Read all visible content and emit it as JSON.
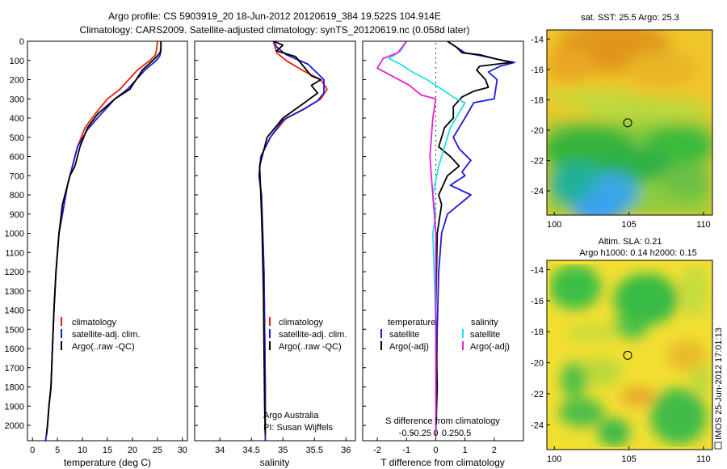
{
  "header": {
    "line1": "Argo profile: CS 5903919_20 18-Jun-2012 20120619_384 19.522S 104.914E",
    "line2": "Climatology: CARS2009. Satellite-adjusted climatology: synTS_20120619.nc (0.058d later)"
  },
  "colors": {
    "climatology": "#e8200e",
    "satellite": "#1a1adc",
    "argo": "#000000",
    "sat_s_diff": "#22dfe6",
    "argo_s_diff": "#e622d2"
  },
  "chart_data": [
    {
      "id": "temperature",
      "type": "line",
      "xlabel": "temperature (deg C)",
      "ylabel": "",
      "xlim": [
        -1,
        31
      ],
      "ylim": [
        2080,
        0
      ],
      "xticks": [
        0,
        5,
        10,
        15,
        20,
        25,
        30
      ],
      "xtick_labels": [
        "0",
        "5",
        "10",
        "15",
        "20",
        "25",
        "30"
      ],
      "yticks": [
        0,
        100,
        200,
        300,
        400,
        500,
        600,
        700,
        800,
        900,
        1000,
        1100,
        1200,
        1300,
        1400,
        1500,
        1600,
        1700,
        1800,
        1900,
        2000
      ],
      "ytick_labels": [
        "0",
        "100",
        "200",
        "300",
        "400",
        "500",
        "600",
        "700",
        "800",
        "900",
        "1000",
        "1100",
        "1200",
        "1300",
        "1400",
        "1500",
        "1600",
        "1700",
        "1800",
        "1900",
        "2000"
      ],
      "legend": [
        "climatology",
        "satellite-adj. clim.",
        "Argo(..raw -QC)"
      ],
      "series": [
        {
          "name": "climatology",
          "color_key": "climatology",
          "x": [
            25.0,
            24.8,
            24.5,
            23.5,
            21.0,
            17.5,
            15.0,
            12.5,
            10.5,
            9.0,
            8.0,
            7.0,
            6.0,
            5.3,
            4.7,
            4.3,
            4.0,
            3.7,
            3.3,
            3.0,
            2.8,
            2.6,
            2.5
          ],
          "y": [
            0,
            50,
            75,
            100,
            150,
            250,
            300,
            380,
            450,
            550,
            650,
            750,
            900,
            1000,
            1200,
            1400,
            1600,
            1800,
            1900,
            2000,
            2050,
            2080,
            2080
          ]
        },
        {
          "name": "satellite-adj. clim.",
          "color_key": "satellite",
          "x": [
            25.7,
            25.7,
            25.5,
            24.8,
            22.5,
            19.0,
            16.5,
            13.0,
            11.0,
            9.0,
            8.0,
            7.0,
            6.0,
            5.3,
            4.7,
            4.3,
            4.0,
            3.7,
            3.3,
            3.0,
            2.8,
            2.6,
            2.5
          ],
          "y": [
            0,
            50,
            75,
            100,
            150,
            250,
            300,
            400,
            460,
            550,
            650,
            750,
            900,
            1000,
            1200,
            1400,
            1600,
            1800,
            1900,
            2000,
            2050,
            2080,
            2080
          ]
        },
        {
          "name": "Argo(..raw -QC)",
          "color_key": "argo",
          "x": [
            25.7,
            25.7,
            25.5,
            24.5,
            22.0,
            19.5,
            16.5,
            13.0,
            11.0,
            9.5,
            8.5,
            7.5,
            6.0,
            5.3,
            4.7,
            4.3,
            4.0,
            3.7,
            3.3,
            3.0,
            2.8
          ],
          "y": [
            0,
            40,
            60,
            90,
            150,
            250,
            300,
            380,
            450,
            550,
            650,
            700,
            850,
            1000,
            1200,
            1400,
            1600,
            1800,
            1900,
            2000,
            2050
          ]
        }
      ]
    },
    {
      "id": "salinity",
      "type": "line",
      "xlabel": "salinity",
      "ylabel": "",
      "xlim": [
        33.6,
        36.15
      ],
      "ylim": [
        2080,
        0
      ],
      "xticks": [
        34,
        34.5,
        35,
        35.5,
        36
      ],
      "xtick_labels": [
        "34",
        "34.5",
        "35",
        "35.5",
        "36"
      ],
      "legend": [
        "climatology",
        "satellite-adj. clim.",
        "Argo(..raw -QC)"
      ],
      "annotation": [
        "Argo Australia",
        "PI: Susan Wijffels"
      ],
      "series": [
        {
          "name": "climatology",
          "color_key": "climatology",
          "x": [
            34.85,
            34.9,
            35.05,
            35.3,
            35.6,
            35.7,
            35.6,
            35.35,
            35.05,
            34.8,
            34.65,
            34.62,
            34.66,
            34.68,
            34.7,
            34.71,
            34.72,
            34.72,
            34.72
          ],
          "y": [
            0,
            60,
            100,
            150,
            200,
            250,
            300,
            350,
            400,
            500,
            600,
            700,
            800,
            1000,
            1200,
            1500,
            1800,
            2000,
            2080
          ]
        },
        {
          "name": "satellite-adj. clim.",
          "color_key": "satellite",
          "x": [
            34.85,
            34.9,
            35.05,
            35.4,
            35.65,
            35.65,
            35.55,
            35.3,
            35.0,
            34.8,
            34.65,
            34.62,
            34.66,
            34.68,
            34.7,
            34.71,
            34.72,
            34.72,
            34.72
          ],
          "y": [
            0,
            30,
            70,
            120,
            200,
            270,
            310,
            360,
            410,
            500,
            600,
            700,
            800,
            1000,
            1200,
            1500,
            1800,
            2000,
            2080
          ]
        },
        {
          "name": "Argo(..raw -QC)",
          "color_key": "argo",
          "x": [
            34.85,
            35.0,
            34.9,
            35.2,
            35.3,
            35.45,
            35.6,
            35.45,
            35.55,
            35.3,
            35.0,
            34.75,
            34.63,
            34.65,
            34.67,
            34.69,
            34.7,
            34.71,
            34.72
          ],
          "y": [
            0,
            20,
            50,
            80,
            120,
            180,
            200,
            230,
            270,
            330,
            400,
            500,
            650,
            800,
            1000,
            1300,
            1600,
            1900,
            2050
          ]
        }
      ]
    },
    {
      "id": "difference",
      "type": "line",
      "xlabel": "T difference from climatology",
      "xlabel_top": "S difference from climatology",
      "ylabel": "",
      "xlim": [
        -2.5,
        3.0
      ],
      "ylim": [
        2080,
        0
      ],
      "xticks": [
        -2,
        -1,
        0,
        1,
        2
      ],
      "xtick_labels": [
        "-2",
        "-1",
        "0",
        "1",
        "2"
      ],
      "s_ticks_in_t_units": [
        -1.0,
        -0.5,
        0,
        0.5,
        1.0
      ],
      "s_tick_labels": [
        "-0.5",
        "-0.25",
        "0",
        "0.25",
        "0.5"
      ],
      "legend_headers": [
        "temperature",
        "salinity"
      ],
      "legend": [
        "satellite",
        "Argo(-adj)",
        "satellite",
        "Argo(-adj)"
      ],
      "series": [
        {
          "name": "satellite",
          "group": "temperature",
          "color_key": "satellite",
          "x": [
            0.4,
            0.8,
            1.0,
            1.7,
            2.3,
            2.7,
            2.2,
            1.8,
            2.1,
            2.0,
            1.3,
            1.0,
            0.6,
            0.8,
            1.2,
            0.9,
            1.0,
            0.5,
            1.2,
            0.8,
            0.4,
            0.2,
            0.1,
            0.05,
            0.02,
            0.0
          ],
          "y": [
            0,
            40,
            60,
            80,
            100,
            110,
            130,
            160,
            200,
            300,
            320,
            400,
            500,
            560,
            620,
            680,
            700,
            750,
            800,
            850,
            900,
            1000,
            1200,
            1500,
            1800,
            2050
          ]
        },
        {
          "name": "Argo(-adj)",
          "group": "temperature",
          "color_key": "argo",
          "x": [
            0.4,
            0.7,
            0.9,
            1.5,
            2.0,
            2.6,
            1.5,
            1.4,
            1.7,
            1.8,
            1.3,
            0.9,
            0.6,
            0.6,
            0.3,
            0.1,
            0.5,
            0.8,
            0.4,
            0.1,
            0.2,
            0.05,
            0.0,
            0.05,
            0.0
          ],
          "y": [
            0,
            30,
            60,
            70,
            90,
            110,
            130,
            150,
            200,
            240,
            260,
            290,
            340,
            400,
            450,
            550,
            600,
            650,
            700,
            800,
            850,
            1000,
            1400,
            1800,
            2050
          ]
        },
        {
          "name": "satellite",
          "group": "salinity",
          "color_key": "sat_s_diff",
          "x": [
            -1.0,
            -1.2,
            -1.6,
            -1.2,
            -0.8,
            -0.3,
            0.2,
            0.7,
            1.0,
            0.5,
            0.3,
            0.1,
            -0.1,
            0.0,
            -0.1,
            -0.05,
            0.0,
            0.0,
            0.0
          ],
          "y": [
            0,
            50,
            90,
            120,
            160,
            200,
            250,
            300,
            320,
            450,
            550,
            650,
            800,
            900,
            1000,
            1200,
            1500,
            1800,
            2050
          ]
        },
        {
          "name": "Argo(-adj)",
          "group": "salinity",
          "color_key": "argo_s_diff",
          "x": [
            -1.0,
            -1.3,
            -1.8,
            -2.0,
            -1.5,
            -0.9,
            -0.5,
            0.0,
            -0.1,
            -0.2,
            -0.1,
            0.0,
            0.0,
            0.0
          ],
          "y": [
            0,
            60,
            90,
            140,
            180,
            230,
            280,
            300,
            400,
            600,
            800,
            1000,
            1400,
            2050
          ]
        }
      ]
    },
    {
      "id": "sst-map",
      "type": "heatmap",
      "title": "sat. SST: 25.5 Argo: 25.3",
      "xlim": [
        99.5,
        110.6
      ],
      "ylim": [
        -25.6,
        -13.4
      ],
      "xticks": [
        100,
        105,
        110
      ],
      "xtick_labels": [
        "100",
        "105",
        "110"
      ],
      "yticks": [
        -14,
        -16,
        -18,
        -20,
        -22,
        -24
      ],
      "ytick_labels": [
        "-14",
        "-16",
        "-18",
        "-20",
        "-22",
        "-24"
      ],
      "marker": {
        "lon": 104.914,
        "lat": -19.522
      }
    },
    {
      "id": "sla-map",
      "type": "heatmap",
      "title": "Altim. SLA: 0.21",
      "subtitle": "Argo h1000: 0.14 h2000: 0.15",
      "xlim": [
        99.5,
        110.6
      ],
      "ylim": [
        -25.6,
        -13.4
      ],
      "xticks": [
        100,
        105,
        110
      ],
      "xtick_labels": [
        "100",
        "105",
        "110"
      ],
      "yticks": [
        -14,
        -16,
        -18,
        -20,
        -22,
        -24
      ],
      "ytick_labels": [
        "-14",
        "-16",
        "-18",
        "-20",
        "-22",
        "-24"
      ],
      "marker": {
        "lon": 104.914,
        "lat": -19.522
      }
    }
  ],
  "footer": {
    "stamp": "IMOS 25-Jun-2012 17:01:13"
  }
}
